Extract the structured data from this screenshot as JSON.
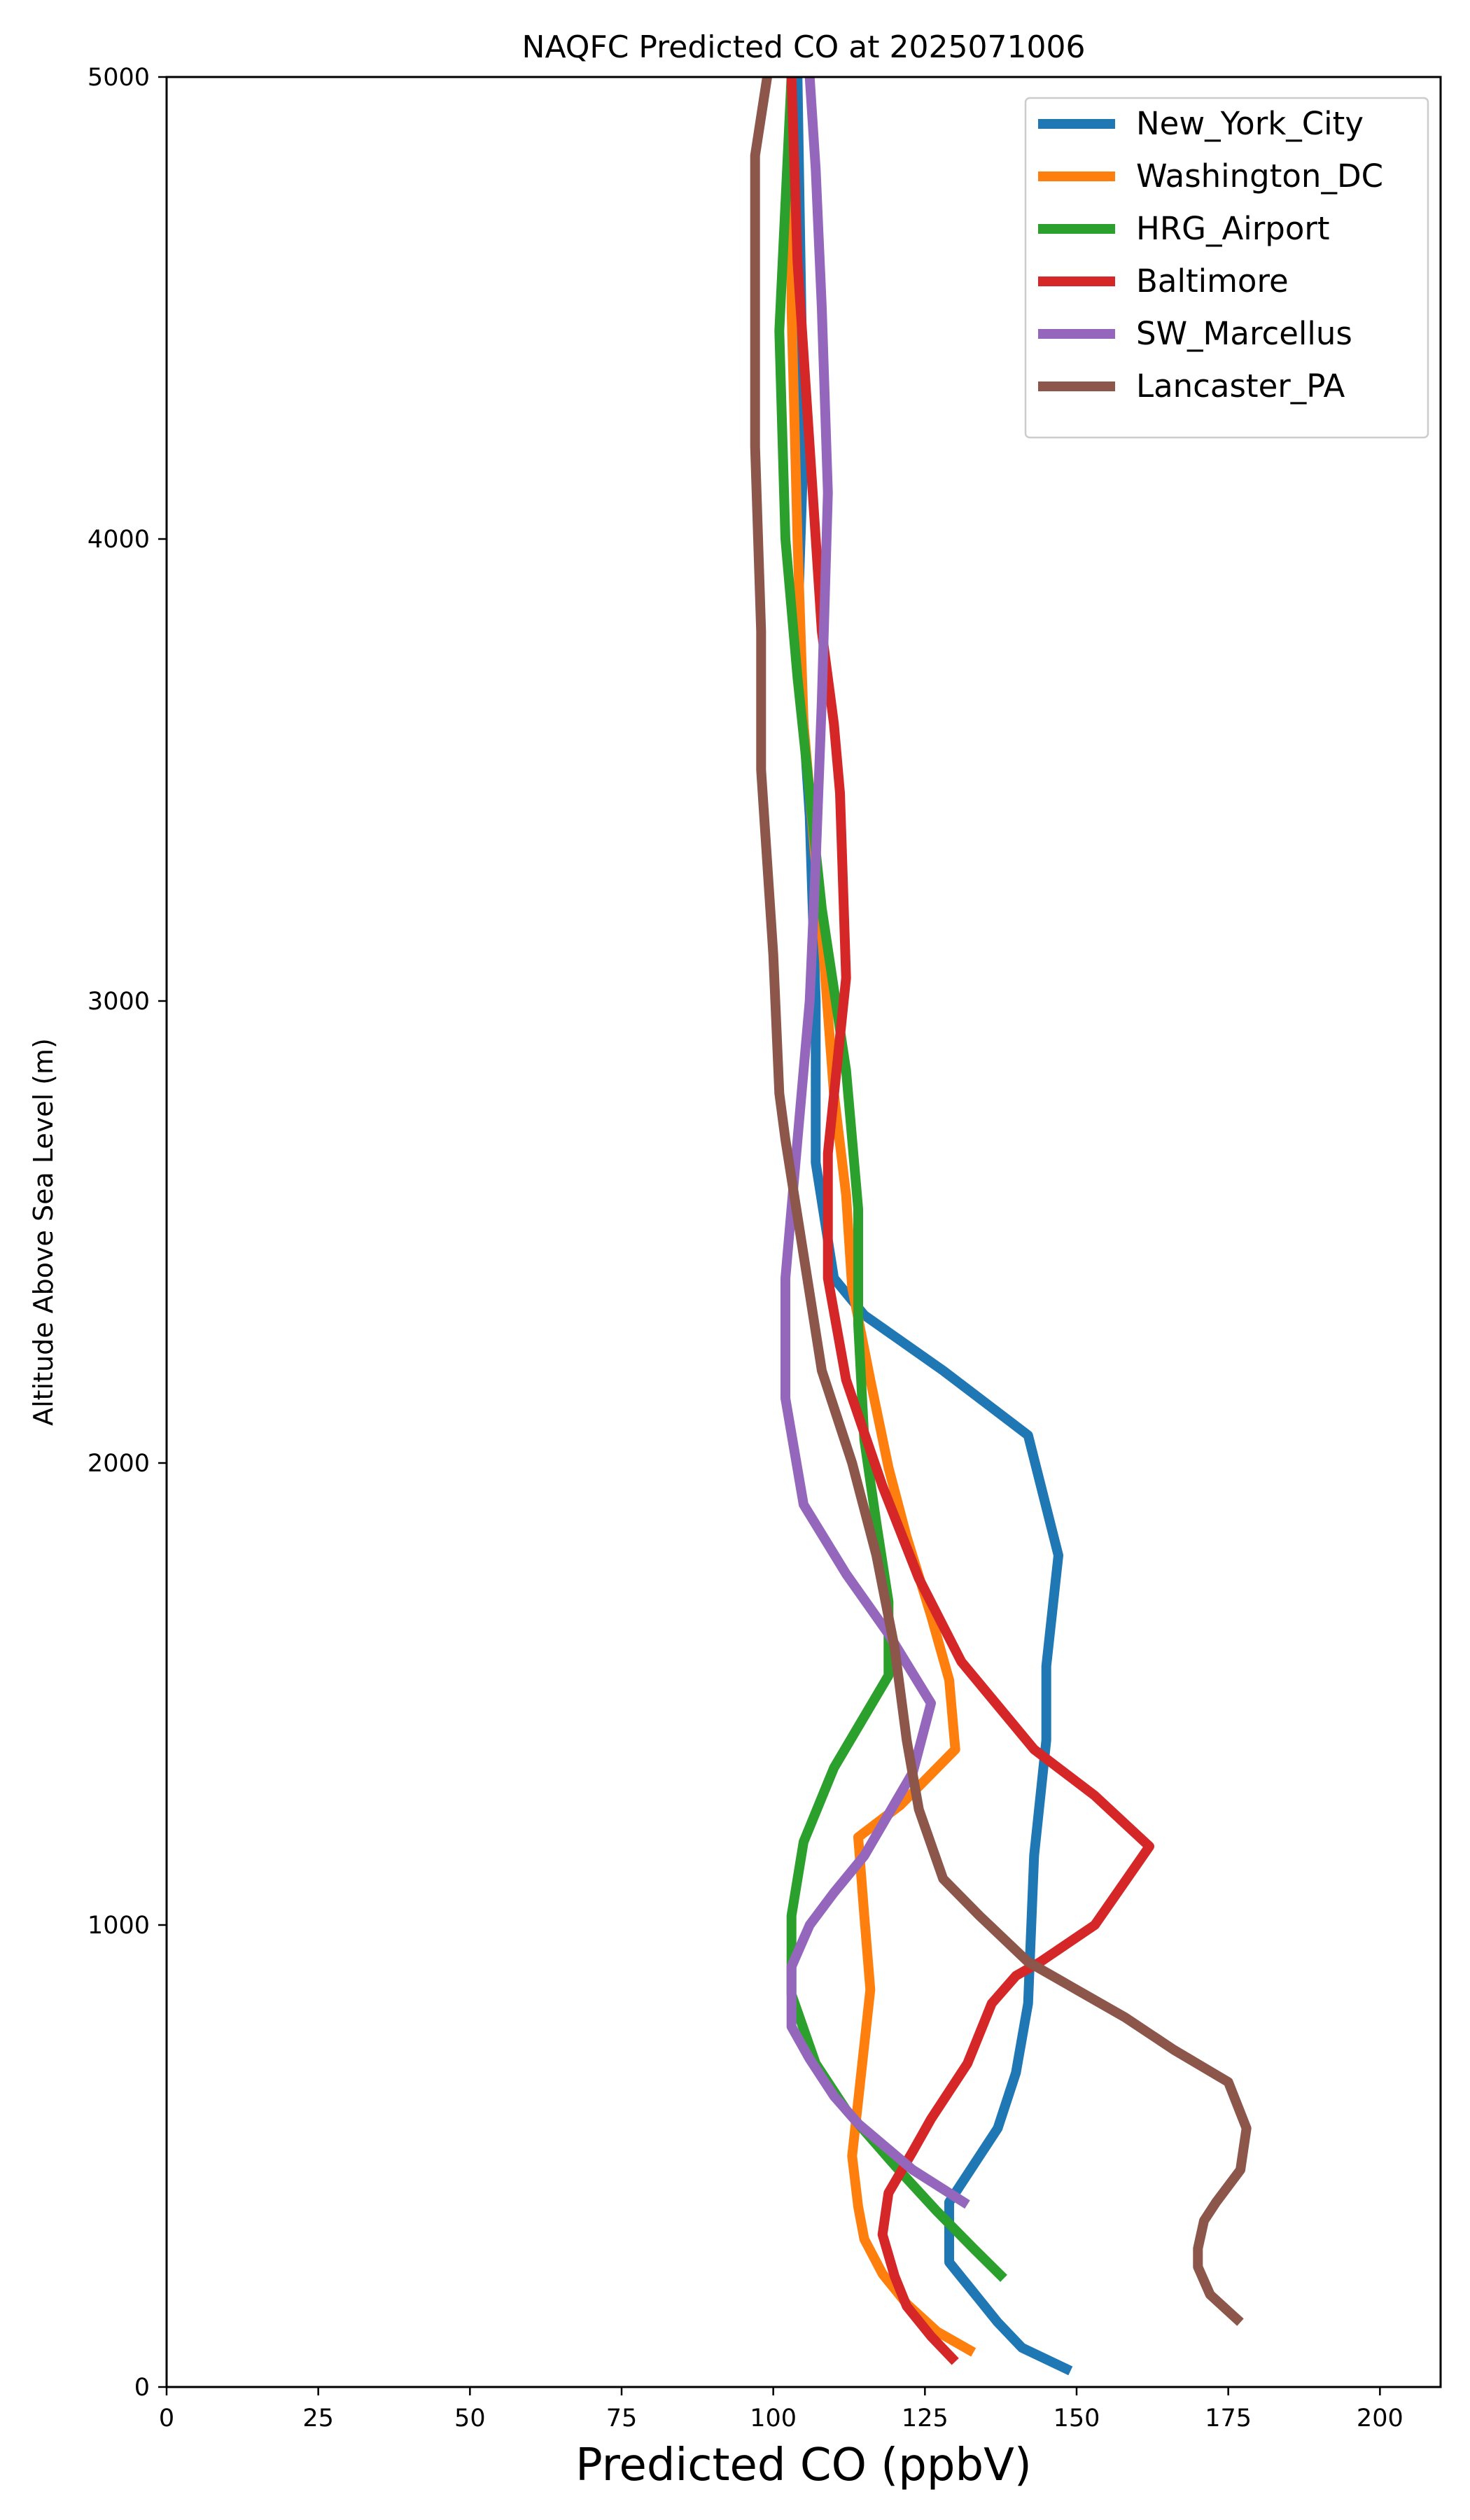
{
  "chart_data": {
    "type": "line",
    "title": "NAQFC Predicted CO at 2025071006",
    "xlabel": "Predicted CO (ppbV)",
    "ylabel": "Altitude Above Sea Level (m)",
    "xlim": [
      0,
      210
    ],
    "ylim": [
      0,
      5000
    ],
    "xticks": [
      "0",
      "25",
      "50",
      "75",
      "100",
      "125",
      "150",
      "175",
      "200"
    ],
    "yticks": [
      "0",
      "1000",
      "2000",
      "3000",
      "4000",
      "5000"
    ],
    "grid": false,
    "legend_position": "top-right",
    "series": [
      {
        "name": "New_York_City",
        "color": "#1f77b4",
        "points": [
          [
            149,
            35
          ],
          [
            141,
            85
          ],
          [
            137,
            140
          ],
          [
            133,
            205
          ],
          [
            129,
            270
          ],
          [
            129,
            335
          ],
          [
            129,
            400
          ],
          [
            132,
            460
          ],
          [
            137,
            560
          ],
          [
            140,
            680
          ],
          [
            142,
            830
          ],
          [
            143,
            1150
          ],
          [
            145,
            1400
          ],
          [
            145,
            1560
          ],
          [
            147,
            1800
          ],
          [
            142,
            2060
          ],
          [
            128,
            2200
          ],
          [
            115,
            2320
          ],
          [
            110,
            2400
          ],
          [
            107,
            2650
          ],
          [
            107,
            3000
          ],
          [
            106,
            3400
          ],
          [
            104,
            3800
          ],
          [
            105,
            4200
          ],
          [
            104,
            5000
          ]
        ]
      },
      {
        "name": "Washington_DC",
        "color": "#ff7f0e",
        "points": [
          [
            133,
            75
          ],
          [
            127,
            120
          ],
          [
            122,
            180
          ],
          [
            118,
            245
          ],
          [
            115,
            320
          ],
          [
            114,
            390
          ],
          [
            113,
            500
          ],
          [
            114,
            620
          ],
          [
            116,
            860
          ],
          [
            115,
            1020
          ],
          [
            114,
            1190
          ],
          [
            121,
            1260
          ],
          [
            130,
            1380
          ],
          [
            129,
            1530
          ],
          [
            126,
            1670
          ],
          [
            122,
            1840
          ],
          [
            119,
            1990
          ],
          [
            116,
            2180
          ],
          [
            113,
            2380
          ],
          [
            112,
            2580
          ],
          [
            110,
            2800
          ],
          [
            108,
            3150
          ],
          [
            105,
            3600
          ],
          [
            104,
            4000
          ],
          [
            103,
            4500
          ],
          [
            103,
            5000
          ]
        ]
      },
      {
        "name": "HRG_Airport",
        "color": "#2ca02c",
        "points": [
          [
            138,
            235
          ],
          [
            133,
            300
          ],
          [
            127,
            380
          ],
          [
            120,
            480
          ],
          [
            112,
            600
          ],
          [
            107,
            700
          ],
          [
            103,
            850
          ],
          [
            103,
            1020
          ],
          [
            105,
            1180
          ],
          [
            110,
            1340
          ],
          [
            119,
            1540
          ],
          [
            119,
            1700
          ],
          [
            117,
            1870
          ],
          [
            115,
            2050
          ],
          [
            114,
            2300
          ],
          [
            114,
            2550
          ],
          [
            112,
            2850
          ],
          [
            108,
            3200
          ],
          [
            104,
            3700
          ],
          [
            102,
            4000
          ],
          [
            101,
            4450
          ],
          [
            103,
            5000
          ]
        ]
      },
      {
        "name": "Baltimore",
        "color": "#d62728",
        "points": [
          [
            130,
            55
          ],
          [
            126,
            110
          ],
          [
            122,
            175
          ],
          [
            120,
            240
          ],
          [
            118,
            330
          ],
          [
            119,
            420
          ],
          [
            123,
            510
          ],
          [
            126,
            580
          ],
          [
            132,
            700
          ],
          [
            136,
            830
          ],
          [
            140,
            890
          ],
          [
            144,
            920
          ],
          [
            153,
            1000
          ],
          [
            162,
            1170
          ],
          [
            153,
            1280
          ],
          [
            143,
            1380
          ],
          [
            131,
            1570
          ],
          [
            124,
            1750
          ],
          [
            118,
            1950
          ],
          [
            112,
            2180
          ],
          [
            109,
            2400
          ],
          [
            109,
            2670
          ],
          [
            112,
            3050
          ],
          [
            111,
            3450
          ],
          [
            110,
            3600
          ],
          [
            108,
            3800
          ],
          [
            106,
            4200
          ],
          [
            104,
            4600
          ],
          [
            103,
            5000
          ]
        ]
      },
      {
        "name": "SW_Marcellus",
        "color": "#9467bd",
        "points": [
          [
            132,
            395
          ],
          [
            123,
            470
          ],
          [
            114,
            570
          ],
          [
            110,
            630
          ],
          [
            106,
            710
          ],
          [
            103,
            780
          ],
          [
            103,
            840
          ],
          [
            103,
            910
          ],
          [
            106,
            1000
          ],
          [
            110,
            1070
          ],
          [
            115,
            1150
          ],
          [
            119,
            1240
          ],
          [
            123,
            1330
          ],
          [
            126,
            1480
          ],
          [
            119,
            1630
          ],
          [
            112,
            1760
          ],
          [
            105,
            1910
          ],
          [
            102,
            2140
          ],
          [
            102,
            2400
          ],
          [
            104,
            2700
          ],
          [
            106,
            3000
          ],
          [
            107,
            3300
          ],
          [
            108,
            3650
          ],
          [
            109,
            4100
          ],
          [
            108,
            4500
          ],
          [
            107,
            4800
          ],
          [
            106,
            5000
          ]
        ]
      },
      {
        "name": "Lancaster_PA",
        "color": "#8c564b",
        "points": [
          [
            177,
            140
          ],
          [
            172,
            200
          ],
          [
            170,
            260
          ],
          [
            170,
            300
          ],
          [
            171,
            360
          ],
          [
            173,
            400
          ],
          [
            177,
            470
          ],
          [
            178,
            560
          ],
          [
            175,
            660
          ],
          [
            166,
            730
          ],
          [
            158,
            800
          ],
          [
            150,
            860
          ],
          [
            142,
            920
          ],
          [
            134,
            1020
          ],
          [
            128,
            1100
          ],
          [
            124,
            1250
          ],
          [
            122,
            1400
          ],
          [
            120,
            1600
          ],
          [
            117,
            1800
          ],
          [
            113,
            2000
          ],
          [
            108,
            2200
          ],
          [
            105,
            2450
          ],
          [
            102,
            2700
          ],
          [
            101,
            2800
          ],
          [
            100,
            3100
          ],
          [
            98,
            3500
          ],
          [
            98,
            3800
          ],
          [
            97,
            4200
          ],
          [
            97,
            4500
          ],
          [
            97,
            4830
          ],
          [
            99,
            5000
          ]
        ]
      }
    ]
  }
}
